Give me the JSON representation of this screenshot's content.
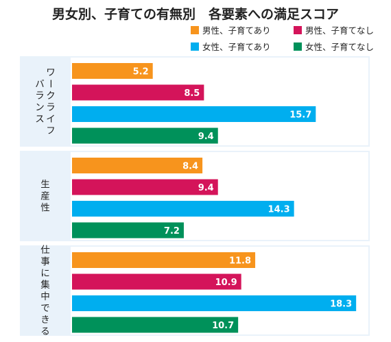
{
  "chart_data": {
    "type": "bar",
    "orientation": "horizontal",
    "title": "男女別、子育ての有無別　各要素への満足スコア",
    "xlim": [
      0,
      19
    ],
    "grid": false,
    "legend_placement": "top-right",
    "categories": [
      "ワークライフバランス",
      "生産性",
      "仕事に集中できる"
    ],
    "series": [
      {
        "name": "男性、子育てあり",
        "color": "#F7941D",
        "values": [
          5.2,
          8.4,
          11.8
        ]
      },
      {
        "name": "男性、子育てなし",
        "color": "#D4145A",
        "values": [
          8.5,
          9.4,
          10.9
        ]
      },
      {
        "name": "女性、子育てあり",
        "color": "#00AEEF",
        "values": [
          15.7,
          14.3,
          18.3
        ]
      },
      {
        "name": "女性、子育てなし",
        "color": "#00915A",
        "values": [
          9.4,
          7.2,
          10.7
        ]
      }
    ],
    "panel_color": "#E9F2FA"
  }
}
